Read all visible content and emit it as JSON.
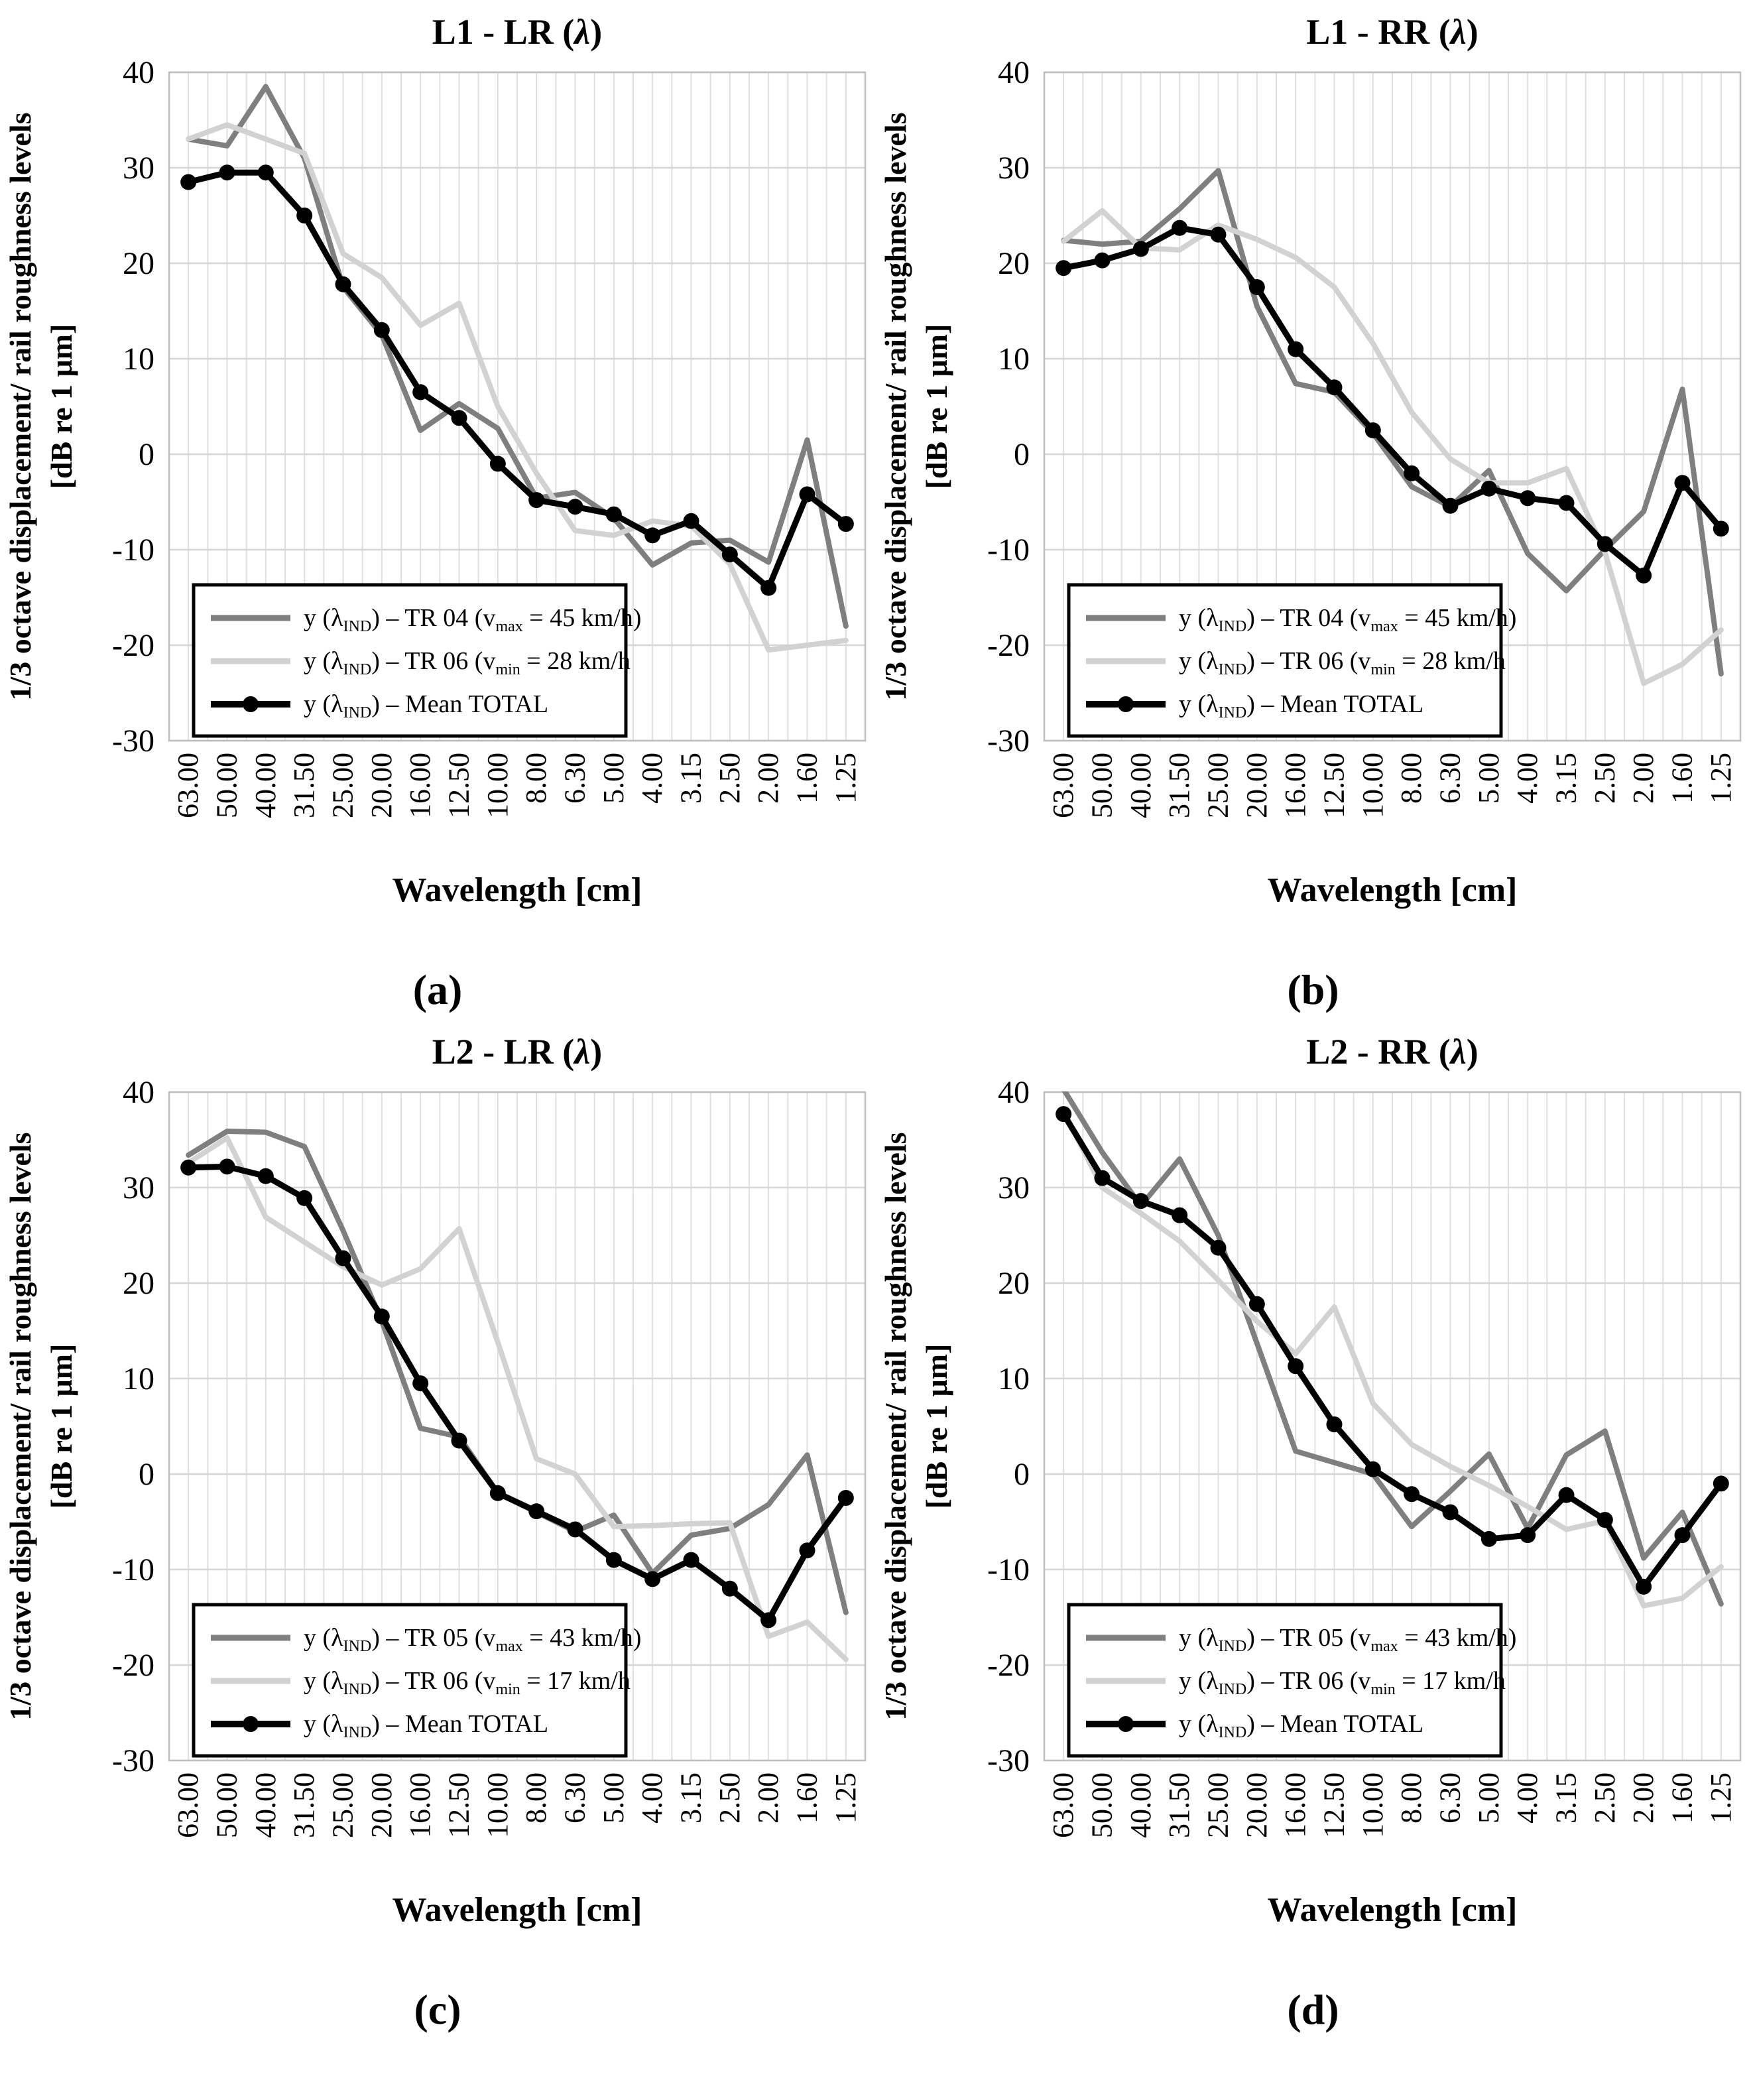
{
  "page": {
    "background": "#ffffff",
    "type": "four-panel scientific line chart figure"
  },
  "shared": {
    "ylabel_line1": "1/3  octave displacement/ rail roughness levels",
    "ylabel_line2": "[dB  re 1 μm]",
    "xlabel": "Wavelength [cm]",
    "yticks": [
      40,
      30,
      20,
      10,
      0,
      -10,
      -20,
      -30
    ],
    "colors": {
      "series_dark_gray": "#7f7f7f",
      "series_light_gray": "#d2d2d2",
      "series_black": "#000000",
      "grid_horizontal": "#d6d6d6",
      "grid_vertical": "#e0e0e0",
      "plot_border": "#bfbfbf",
      "legend_border": "#000000"
    }
  },
  "chart_data": [
    {
      "id": "a",
      "type": "line",
      "title": "L1 - LR (λ)",
      "caption": "(a)",
      "xlabel": "Wavelength [cm]",
      "ylabel_line1": "1/3  octave displacement/ rail roughness levels",
      "ylabel_line2": "[dB  re 1 μm]",
      "ylim": [
        -30,
        40
      ],
      "ytick_step": 10,
      "grid": true,
      "legend_position": "lower-left",
      "categories": [
        "63.00",
        "50.00",
        "40.00",
        "31.50",
        "25.00",
        "20.00",
        "16.00",
        "12.50",
        "10.00",
        "8.00",
        "6.30",
        "5.00",
        "4.00",
        "3.15",
        "2.50",
        "2.00",
        "1.60",
        "1.25"
      ],
      "series": [
        {
          "name": "y (λIND) – TR 04 (vmax = 45 km/h)",
          "rich": "y (λ|IND|) – TR 04 (v|max| = 45 km/h)",
          "color": "#7f7f7f",
          "width": 8,
          "marker": "none",
          "values": [
            33,
            32.3,
            38.5,
            31,
            17.5,
            12.5,
            2.5,
            5.3,
            2.7,
            -4.6,
            -4,
            -6.7,
            -11.6,
            -9.3,
            -9,
            -11.3,
            1.5,
            -18
          ]
        },
        {
          "name": "y (λIND) – TR 06 (vmin = 28 km/h",
          "rich": "y (λ|IND|) – TR 06 (v|min| = 28 km/h",
          "color": "#d2d2d2",
          "width": 8,
          "marker": "none",
          "values": [
            33,
            34.5,
            33,
            31.5,
            21,
            18.5,
            13.5,
            15.8,
            5,
            -2,
            -8,
            -8.5,
            -7,
            -7.5,
            -11.5,
            -20.5,
            -20,
            -19.5
          ]
        },
        {
          "name": "y (λIND) – Mean TOTAL",
          "rich": "y (λ|IND|) – Mean TOTAL",
          "color": "#000000",
          "width": 9,
          "marker": "circle",
          "values": [
            28.5,
            29.5,
            29.5,
            25,
            17.8,
            13,
            6.5,
            3.8,
            -1,
            -4.8,
            -5.5,
            -6.3,
            -8.5,
            -7,
            -10.5,
            -14,
            -4.2,
            -7.3
          ]
        }
      ]
    },
    {
      "id": "b",
      "type": "line",
      "title": "L1 - RR (λ)",
      "caption": "(b)",
      "xlabel": "Wavelength [cm]",
      "ylabel_line1": "1/3  octave displacement/ rail roughness levels",
      "ylabel_line2": "[dB  re 1 μm]",
      "ylim": [
        -30,
        40
      ],
      "ytick_step": 10,
      "grid": true,
      "legend_position": "lower-left",
      "categories": [
        "63.00",
        "50.00",
        "40.00",
        "31.50",
        "25.00",
        "20.00",
        "16.00",
        "12.50",
        "10.00",
        "8.00",
        "6.30",
        "5.00",
        "4.00",
        "3.15",
        "2.50",
        "2.00",
        "1.60",
        "1.25"
      ],
      "series": [
        {
          "name": "y (λIND) – TR 04 (vmax = 45 km/h)",
          "rich": "y (λ|IND|) – TR 04 (v|max| = 45 km/h)",
          "color": "#7f7f7f",
          "width": 8,
          "marker": "none",
          "values": [
            22.4,
            22,
            22.3,
            25.7,
            29.7,
            15.5,
            7.4,
            6.5,
            2.2,
            -3.4,
            -5.5,
            -1.7,
            -10.4,
            -14.3,
            -10,
            -6,
            6.8,
            -23
          ]
        },
        {
          "name": "y (λIND) – TR 06 (vmin = 28 km/h",
          "rich": "y (λ|IND|) – TR 06 (v|min| = 28 km/h",
          "color": "#d2d2d2",
          "width": 8,
          "marker": "none",
          "values": [
            22.3,
            25.5,
            21.6,
            21.4,
            24,
            22.5,
            20.6,
            17.5,
            11.6,
            4.4,
            -0.5,
            -3,
            -3,
            -1.5,
            -10.3,
            -24,
            -22,
            -18.4
          ]
        },
        {
          "name": "y (λIND) – Mean TOTAL",
          "rich": "y (λ|IND|) – Mean TOTAL",
          "color": "#000000",
          "width": 9,
          "marker": "circle",
          "values": [
            19.5,
            20.3,
            21.5,
            23.7,
            23,
            17.5,
            11,
            7,
            2.5,
            -2,
            -5.4,
            -3.6,
            -4.6,
            -5.1,
            -9.4,
            -12.7,
            -3,
            -7.8
          ]
        }
      ]
    },
    {
      "id": "c",
      "type": "line",
      "title": "L2 - LR (λ)",
      "caption": "(c)",
      "xlabel": "Wavelength [cm]",
      "ylabel_line1": "1/3  octave displacement/ rail roughness levels",
      "ylabel_line2": "[dB  re 1 μm]",
      "ylim": [
        -30,
        40
      ],
      "ytick_step": 10,
      "grid": true,
      "legend_position": "lower-left",
      "categories": [
        "63.00",
        "50.00",
        "40.00",
        "31.50",
        "25.00",
        "20.00",
        "16.00",
        "12.50",
        "10.00",
        "8.00",
        "6.30",
        "5.00",
        "4.00",
        "3.15",
        "2.50",
        "2.00",
        "1.60",
        "1.25"
      ],
      "series": [
        {
          "name": "y (λIND) – TR 05 (vmax = 43 km/h)",
          "rich": "y (λ|IND|) – TR 05 (v|max| = 43 km/h)",
          "color": "#7f7f7f",
          "width": 8,
          "marker": "none",
          "values": [
            33.4,
            35.9,
            35.8,
            34.3,
            25.5,
            16,
            4.8,
            3.9,
            -2,
            -4,
            -6,
            -4.3,
            -10.4,
            -6.4,
            -5.7,
            -3.2,
            2,
            -14.5
          ]
        },
        {
          "name": "y (λIND) – TR 06 (vmin = 17 km/h",
          "rich": "y (λ|IND|) – TR 06 (v|min| = 17 km/h",
          "color": "#d2d2d2",
          "width": 8,
          "marker": "none",
          "values": [
            32.6,
            35.2,
            26.9,
            24.3,
            21.7,
            19.8,
            21.5,
            25.7,
            13.8,
            1.6,
            0,
            -5.5,
            -5.4,
            -5.2,
            -5.1,
            -17,
            -15.5,
            -19.4
          ]
        },
        {
          "name": "y (λIND) – Mean TOTAL",
          "rich": "y (λ|IND|) – Mean TOTAL",
          "color": "#000000",
          "width": 9,
          "marker": "circle",
          "values": [
            32.1,
            32.2,
            31.2,
            28.9,
            22.6,
            16.5,
            9.5,
            3.5,
            -2,
            -3.9,
            -5.8,
            -9,
            -11,
            -9,
            -12,
            -15.3,
            -8,
            -2.5
          ]
        }
      ]
    },
    {
      "id": "d",
      "type": "line",
      "title": "L2 - RR (λ)",
      "caption": "(d)",
      "xlabel": "Wavelength [cm]",
      "ylabel_line1": "1/3  octave displacement/ rail roughness levels",
      "ylabel_line2": "[dB  re 1 μm]",
      "ylim": [
        -30,
        40
      ],
      "ytick_step": 10,
      "grid": true,
      "legend_position": "lower-left",
      "categories": [
        "63.00",
        "50.00",
        "40.00",
        "31.50",
        "25.00",
        "20.00",
        "16.00",
        "12.50",
        "10.00",
        "8.00",
        "6.30",
        "5.00",
        "4.00",
        "3.15",
        "2.50",
        "2.00",
        "1.60",
        "1.25"
      ],
      "series": [
        {
          "name": "y (λIND) – TR 05 (vmax = 43 km/h)",
          "rich": "y (λ|IND|) – TR 05 (v|max| = 43 km/h)",
          "color": "#7f7f7f",
          "width": 8,
          "marker": "none",
          "values": [
            40.3,
            33.7,
            28.1,
            33,
            25,
            13.7,
            2.4,
            1.2,
            0,
            -5.5,
            -1.8,
            2.1,
            -5.7,
            2,
            4.5,
            -8.8,
            -4,
            -13.6
          ]
        },
        {
          "name": "y (λIND) – TR 06 (vmin = 17 km/h",
          "rich": "y (λ|IND|) – TR 06 (v|min| = 17 km/h",
          "color": "#d2d2d2",
          "width": 8,
          "marker": "none",
          "values": [
            38,
            30,
            27.3,
            24.4,
            20.3,
            16,
            12.6,
            17.5,
            7.4,
            3.1,
            0.8,
            -1.2,
            -3.4,
            -5.8,
            -4.9,
            -13.8,
            -13,
            -9.7
          ]
        },
        {
          "name": "y (λIND) – Mean TOTAL",
          "rich": "y (λ|IND|) – Mean TOTAL",
          "color": "#000000",
          "width": 9,
          "marker": "circle",
          "values": [
            37.7,
            31,
            28.6,
            27.1,
            23.7,
            17.8,
            11.3,
            5.2,
            0.5,
            -2.1,
            -4,
            -6.8,
            -6.4,
            -2.2,
            -4.8,
            -11.8,
            -6.4,
            -1
          ]
        }
      ]
    }
  ]
}
